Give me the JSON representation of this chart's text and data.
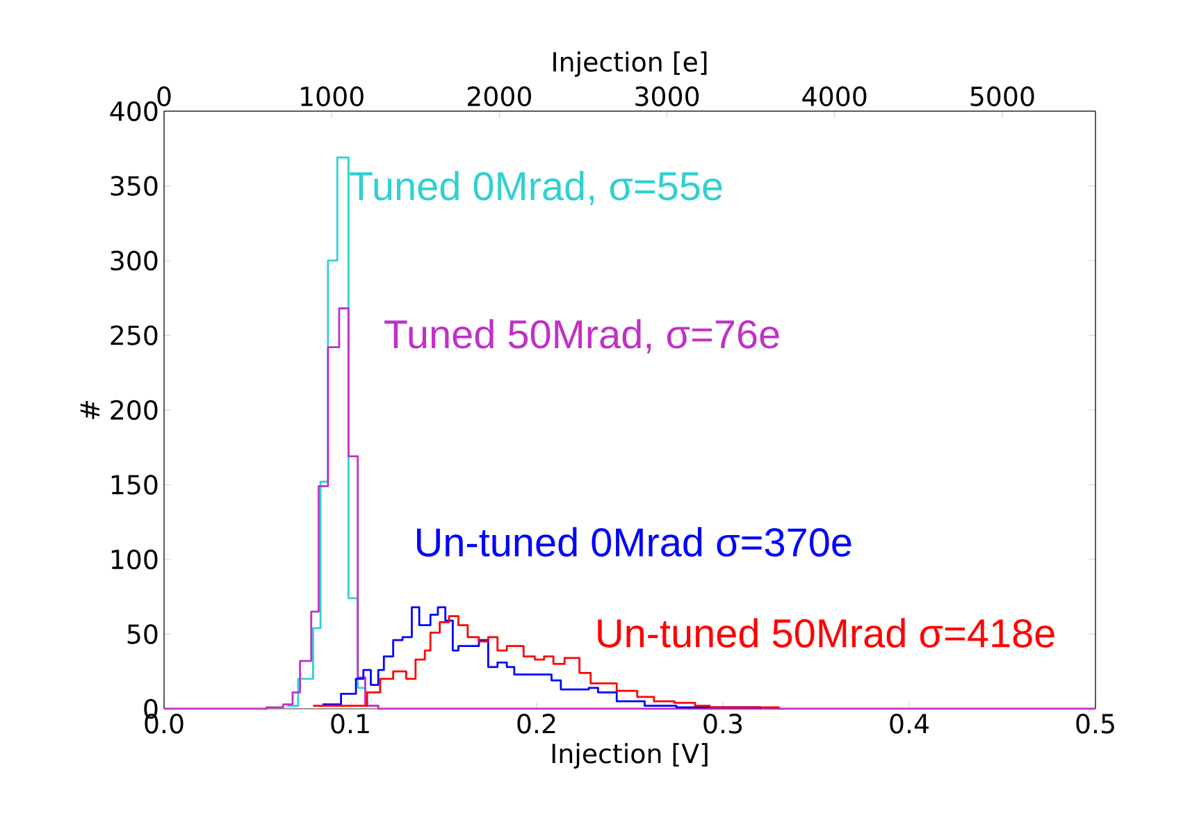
{
  "chart_data": {
    "type": "step",
    "xlabel": "Injection [V]",
    "ylabel": "#",
    "x2label": "Injection [e]",
    "xlim": [
      0,
      0.5
    ],
    "xticks": [
      {
        "value": 0,
        "label": "0.0"
      },
      {
        "value": 0.1,
        "label": "0.1"
      },
      {
        "value": 0.2,
        "label": "0.2"
      },
      {
        "value": 0.3,
        "label": "0.3"
      },
      {
        "value": 0.4,
        "label": "0.4"
      },
      {
        "value": 0.5,
        "label": "0.5"
      }
    ],
    "x2lim": [
      0,
      5556
    ],
    "x2ticks": [
      0,
      1000,
      2000,
      3000,
      4000,
      5000
    ],
    "ylim": [
      0,
      400
    ],
    "yticks": [
      0,
      50,
      100,
      150,
      200,
      250,
      300,
      350,
      400
    ],
    "grid": false,
    "series": [
      {
        "name": "Tuned 0Mrad, σ=55e",
        "color": "#30d0d0",
        "x": [
          0.066,
          0.072,
          0.08,
          0.084,
          0.088,
          0.093,
          0.099,
          0.104,
          0.108,
          0.115
        ],
        "values": [
          2,
          20,
          54,
          152,
          300,
          369,
          74,
          14,
          2,
          0
        ]
      },
      {
        "name": "Tuned 50Mrad, σ=76e",
        "color": "#c030c8",
        "x": [
          0.0,
          0.055,
          0.064,
          0.069,
          0.073,
          0.079,
          0.083,
          0.088,
          0.094,
          0.099,
          0.104,
          0.108,
          0.115,
          0.5
        ],
        "values": [
          0,
          1,
          3,
          11,
          32,
          65,
          149,
          242,
          268,
          169,
          21,
          2,
          0,
          0
        ]
      },
      {
        "name": "Un-tuned 0Mrad σ=370e",
        "color": "#0000ff",
        "x": [
          0.085,
          0.095,
          0.103,
          0.107,
          0.111,
          0.115,
          0.118,
          0.123,
          0.128,
          0.133,
          0.137,
          0.143,
          0.147,
          0.151,
          0.155,
          0.158,
          0.164,
          0.169,
          0.174,
          0.179,
          0.184,
          0.188,
          0.208,
          0.213,
          0.228,
          0.233,
          0.243,
          0.258,
          0.275,
          0.32
        ],
        "values": [
          3,
          10,
          20,
          26,
          16,
          26,
          35,
          46,
          48,
          68,
          56,
          63,
          68,
          59,
          39,
          42,
          42,
          46,
          28,
          31,
          28,
          23,
          19,
          13,
          14,
          11,
          5,
          2,
          1,
          0
        ]
      },
      {
        "name": "Un-tuned 50Mrad σ=418e",
        "color": "#ff0000",
        "x": [
          0.08,
          0.109,
          0.116,
          0.123,
          0.13,
          0.135,
          0.14,
          0.143,
          0.148,
          0.153,
          0.158,
          0.163,
          0.169,
          0.174,
          0.179,
          0.184,
          0.193,
          0.199,
          0.204,
          0.209,
          0.215,
          0.223,
          0.229,
          0.235,
          0.243,
          0.254,
          0.263,
          0.274,
          0.285,
          0.293,
          0.33
        ],
        "values": [
          2,
          11,
          20,
          25,
          20,
          33,
          39,
          51,
          58,
          62,
          56,
          48,
          45,
          48,
          39,
          42,
          35,
          33,
          35,
          30,
          34,
          24,
          17,
          17,
          12,
          8,
          5,
          4,
          2,
          1,
          0
        ]
      }
    ]
  }
}
